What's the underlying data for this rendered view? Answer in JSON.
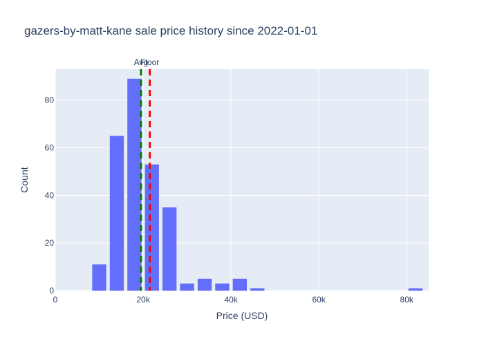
{
  "chart_data": {
    "type": "bar",
    "title": "gazers-by-matt-kane sale price history since 2022-01-01",
    "xlabel": "Price (USD)",
    "ylabel": "Count",
    "xlim": [
      0,
      85000
    ],
    "ylim": [
      0,
      93
    ],
    "x_ticks": [
      0,
      20000,
      40000,
      60000,
      80000
    ],
    "x_tick_labels": [
      "0",
      "20k",
      "40k",
      "60k",
      "80k"
    ],
    "y_ticks": [
      0,
      20,
      40,
      60,
      80
    ],
    "y_tick_labels": [
      "0",
      "20",
      "40",
      "60",
      "80"
    ],
    "bin_width": 4000,
    "bins": [
      {
        "x": 10000,
        "count": 11
      },
      {
        "x": 14000,
        "count": 65
      },
      {
        "x": 18000,
        "count": 89
      },
      {
        "x": 22000,
        "count": 53
      },
      {
        "x": 26000,
        "count": 35
      },
      {
        "x": 30000,
        "count": 3
      },
      {
        "x": 34000,
        "count": 5
      },
      {
        "x": 38000,
        "count": 3
      },
      {
        "x": 42000,
        "count": 5
      },
      {
        "x": 46000,
        "count": 1
      },
      {
        "x": 82000,
        "count": 1
      }
    ],
    "reference_lines": [
      {
        "label": "Avg",
        "x": 19500,
        "color": "#008000",
        "dash": "dashed"
      },
      {
        "label": "Floor",
        "x": 21500,
        "color": "#ff0000",
        "dash": "dashed"
      }
    ],
    "colors": {
      "bar": "#636efa",
      "plot_bg": "#e5ecf6",
      "grid": "#ffffff",
      "text": "#2a3f5f"
    },
    "grid": true,
    "legend": "none"
  }
}
